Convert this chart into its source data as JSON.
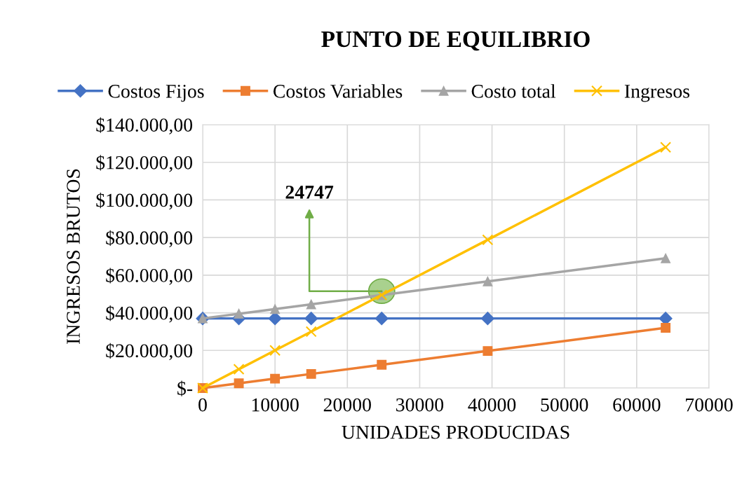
{
  "chart_data": {
    "type": "line",
    "title": "PUNTO DE EQUILIBRIO",
    "xlabel": "UNIDADES PRODUCIDAS",
    "ylabel": "INGRESOS BRUTOS",
    "x": [
      0,
      5000,
      10000,
      15000,
      24747,
      39400,
      64000
    ],
    "series": [
      {
        "name": "Costos Fijos",
        "color": "#4472c4",
        "marker": "diamond",
        "values": [
          37000,
          37000,
          37000,
          37000,
          37000,
          37000,
          37000
        ]
      },
      {
        "name": "Costos Variables",
        "color": "#ed7d31",
        "marker": "square",
        "values": [
          0,
          2500,
          5000,
          7500,
          12400,
          19700,
          32000
        ]
      },
      {
        "name": "Costo total",
        "color": "#a5a5a5",
        "marker": "triangle",
        "values": [
          37000,
          39500,
          42000,
          44500,
          49400,
          56700,
          69000
        ]
      },
      {
        "name": "Ingresos",
        "color": "#ffc000",
        "marker": "cross",
        "values": [
          0,
          10000,
          20000,
          30000,
          49500,
          78800,
          128000
        ]
      }
    ],
    "annotations": [
      {
        "text": "24747",
        "x": 24747,
        "y": 51500
      }
    ],
    "xlim": [
      0,
      70000
    ],
    "xticks": [
      0,
      10000,
      20000,
      30000,
      40000,
      50000,
      60000,
      70000
    ],
    "ylim": [
      0,
      140000
    ],
    "yticks": [
      {
        "value": 0,
        "label": "$-"
      },
      {
        "value": 20000,
        "label": "$20.000,00"
      },
      {
        "value": 40000,
        "label": "$40.000,00"
      },
      {
        "value": 60000,
        "label": "$60.000,00"
      },
      {
        "value": 80000,
        "label": "$80.000,00"
      },
      {
        "value": 100000,
        "label": "$100.000,00"
      },
      {
        "value": 120000,
        "label": "$120.000,00"
      },
      {
        "value": 140000,
        "label": "$140.000,00"
      }
    ],
    "grid": true,
    "legend": "top",
    "line_style": "solid"
  }
}
